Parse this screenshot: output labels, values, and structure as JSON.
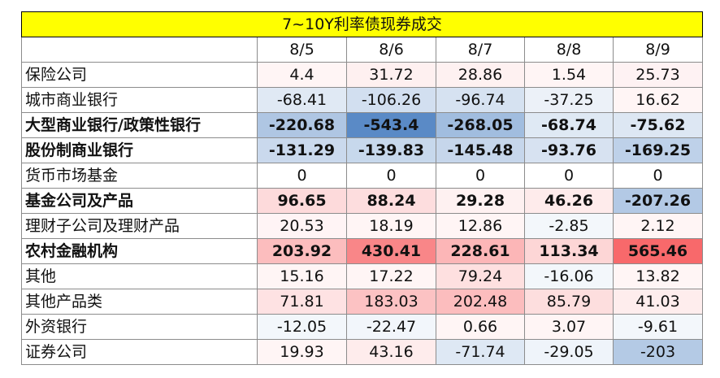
{
  "title": "7~10Y利率债现券成交",
  "dates": [
    "8/5",
    "8/6",
    "8/7",
    "8/8",
    "8/9"
  ],
  "colors": {
    "title_bg": "#ffff00",
    "positive": "#f8696b",
    "negative": "#5a8ac6"
  },
  "rows": [
    {
      "label": "保险公司",
      "bold": false,
      "values": [
        "4.4",
        "31.72",
        "28.86",
        "1.54",
        "25.73"
      ]
    },
    {
      "label": "城市商业银行",
      "bold": false,
      "values": [
        "-68.41",
        "-106.26",
        "-96.74",
        "-37.25",
        "16.62"
      ]
    },
    {
      "label": "大型商业银行/政策性银行",
      "bold": true,
      "values": [
        "-220.68",
        "-543.4",
        "-268.05",
        "-68.74",
        "-75.62"
      ]
    },
    {
      "label": "股份制商业银行",
      "bold": true,
      "values": [
        "-131.29",
        "-139.83",
        "-145.48",
        "-93.76",
        "-169.25"
      ]
    },
    {
      "label": "货币市场基金",
      "bold": false,
      "values": [
        "0",
        "0",
        "0",
        "0",
        "0"
      ]
    },
    {
      "label": "基金公司及产品",
      "bold": true,
      "values": [
        "96.65",
        "88.24",
        "29.28",
        "46.26",
        "-207.26"
      ]
    },
    {
      "label": "理财子公司及理财产品",
      "bold": false,
      "values": [
        "20.53",
        "18.19",
        "12.86",
        "-2.85",
        "2.12"
      ]
    },
    {
      "label": "农村金融机构",
      "bold": true,
      "values": [
        "203.92",
        "430.41",
        "228.61",
        "113.34",
        "565.46"
      ]
    },
    {
      "label": "其他",
      "bold": false,
      "values": [
        "15.16",
        "17.22",
        "79.24",
        "-16.06",
        "13.82"
      ]
    },
    {
      "label": "其他产品类",
      "bold": false,
      "values": [
        "71.81",
        "183.03",
        "202.48",
        "85.79",
        "41.03"
      ]
    },
    {
      "label": "外资银行",
      "bold": false,
      "values": [
        "-12.05",
        "-22.47",
        "0.66",
        "3.07",
        "-9.61"
      ]
    },
    {
      "label": "证券公司",
      "bold": false,
      "values": [
        "19.93",
        "43.16",
        "-71.74",
        "-29.05",
        "-203"
      ]
    }
  ]
}
